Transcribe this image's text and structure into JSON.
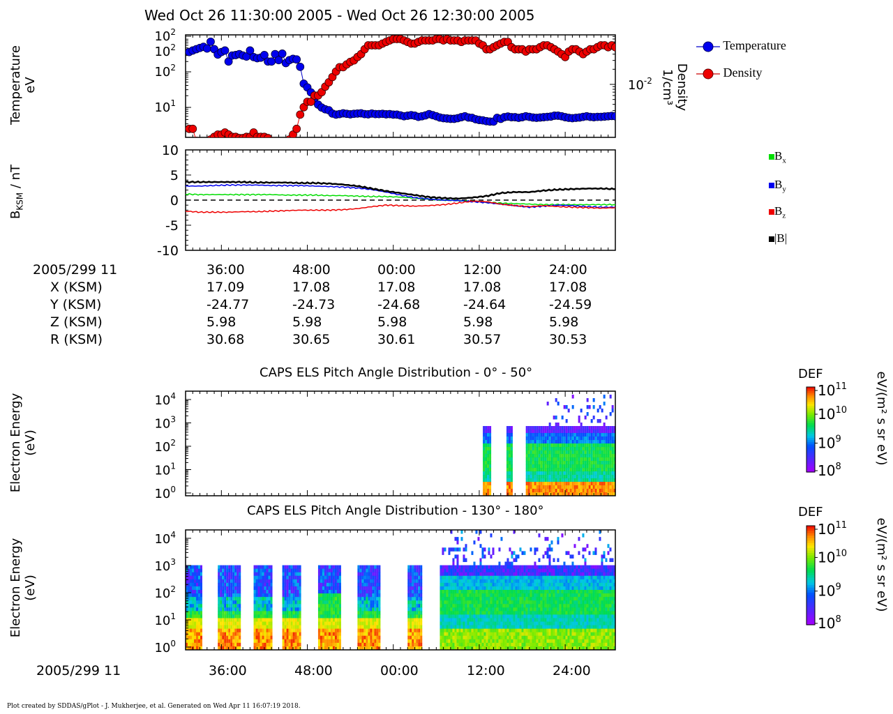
{
  "page_title": "Wed Oct 26 11:30:00 2005 - Wed Oct 26 12:30:00 2005",
  "footer": "Plot created by SDDAS/gPlot - J. Mukherjee, et al.  Generated on Wed Apr 11 16:07:19 2018.",
  "colors": {
    "temperature": "#0000cc",
    "density": "#ee0000",
    "bx": "#00dd00",
    "by": "#0000ee",
    "bz": "#ee0000",
    "btot": "#000000"
  },
  "chart_data": [
    {
      "id": "moments",
      "type": "scatter",
      "ylabel_lines": [
        "Temperature",
        "eV"
      ],
      "right_label_lines": [
        "Density",
        "1/cm³"
      ],
      "right_tick": "10⁻²",
      "ytick_labels": [
        "10²",
        "10²",
        "10²",
        "10¹"
      ],
      "ylog": true,
      "legend": [
        "Temperature",
        "Density"
      ],
      "legend_position": "right",
      "x_minutes": [
        0.5,
        1.0,
        1.5,
        2.0,
        2.5,
        3.0,
        3.5,
        4.0,
        4.5,
        5.0,
        5.5,
        6.0,
        6.5,
        7.0,
        7.5,
        8.0,
        8.5,
        9.0,
        9.5,
        10.0,
        10.5,
        11.0,
        11.5,
        12.0,
        12.5,
        13.0,
        13.5,
        14.0,
        14.5,
        15.0,
        15.5,
        16.0,
        16.5,
        17.0,
        17.5,
        18.0,
        18.5,
        19.0,
        19.5,
        20.0,
        20.5,
        21.0,
        21.5,
        22.0,
        22.5,
        23.0,
        23.5,
        24.0,
        24.5,
        25.0,
        25.5,
        26.0,
        26.5,
        27.0,
        27.5,
        28.0,
        28.5,
        29.0,
        29.5,
        30.0,
        30.5,
        31.0,
        31.5,
        32.0,
        32.5,
        33.0,
        33.5,
        34.0,
        34.5,
        35.0,
        35.5,
        36.0,
        36.5,
        37.0,
        37.5,
        38.0,
        38.5,
        39.0,
        39.5,
        40.0,
        40.5,
        41.0,
        41.5,
        42.0,
        42.5,
        43.0,
        43.5,
        44.0,
        44.5,
        45.0,
        45.5,
        46.0,
        46.5,
        47.0,
        47.5,
        48.0,
        48.5,
        49.0,
        49.5,
        50.0,
        50.5,
        51.0,
        51.5,
        52.0,
        52.5,
        53.0,
        53.5,
        54.0,
        54.5,
        55.0,
        55.5,
        56.0,
        56.5,
        57.0,
        57.5,
        58.0,
        58.5,
        59.0,
        59.5,
        60.0
      ],
      "series": [
        {
          "name": "Temperature",
          "values": [
            380,
            420,
            460,
            500,
            540,
            480,
            760,
            460,
            320,
            380,
            420,
            200,
            300,
            310,
            330,
            300,
            280,
            420,
            270,
            250,
            260,
            310,
            200,
            200,
            330,
            220,
            340,
            180,
            220,
            240,
            230,
            140,
            45,
            35,
            25,
            17,
            11,
            9,
            8,
            7.5,
            6,
            5.6,
            5.8,
            6.1,
            5.9,
            5.7,
            5.9,
            6.0,
            6.1,
            5.8,
            5.7,
            6.0,
            5.8,
            5.8,
            5.9,
            5.7,
            5.8,
            5.6,
            5.6,
            5.3,
            5.0,
            5.2,
            5.4,
            5.2,
            4.8,
            5.0,
            5.3,
            5.8,
            5.4,
            5.0,
            4.6,
            4.4,
            4.3,
            4.2,
            4.2,
            4.4,
            4.7,
            5.0,
            4.6,
            4.5,
            4.1,
            3.9,
            3.8,
            3.6,
            3.5,
            3.5,
            4.5,
            4.2,
            4.7,
            4.9,
            4.7,
            4.7,
            4.5,
            4.7,
            5.0,
            4.8,
            4.6,
            4.5,
            4.6,
            4.7,
            4.8,
            4.9,
            5.2,
            5.2,
            5.0,
            4.7,
            4.5,
            4.4,
            4.5,
            4.6,
            4.8,
            5.0,
            4.8,
            4.7,
            4.8,
            4.8,
            4.9,
            5.0,
            5.1,
            5.0
          ]
        },
        {
          "name": "Density",
          "values": [
            0.0013,
            0.0013,
            0.00075,
            0.00055,
            0.00055,
            0.0007,
            0.0008,
            0.0009,
            0.001,
            0.001,
            0.0011,
            0.001,
            0.0009,
            0.0009,
            0.00085,
            0.00085,
            0.0009,
            0.0009,
            0.0011,
            0.0009,
            0.0009,
            0.0009,
            0.00085,
            0.00075,
            0.0006,
            0.0005,
            0.0006,
            0.0007,
            0.0008,
            0.001,
            0.0013,
            0.0025,
            0.0035,
            0.0045,
            0.0045,
            0.006,
            0.006,
            0.007,
            0.009,
            0.011,
            0.014,
            0.018,
            0.022,
            0.022,
            0.025,
            0.028,
            0.03,
            0.035,
            0.04,
            0.05,
            0.06,
            0.06,
            0.06,
            0.06,
            0.065,
            0.07,
            0.075,
            0.08,
            0.08,
            0.08,
            0.075,
            0.07,
            0.065,
            0.065,
            0.07,
            0.075,
            0.075,
            0.075,
            0.075,
            0.08,
            0.08,
            0.075,
            0.08,
            0.075,
            0.075,
            0.075,
            0.07,
            0.075,
            0.075,
            0.075,
            0.075,
            0.065,
            0.06,
            0.05,
            0.05,
            0.055,
            0.06,
            0.065,
            0.07,
            0.07,
            0.055,
            0.05,
            0.05,
            0.05,
            0.045,
            0.05,
            0.05,
            0.05,
            0.055,
            0.06,
            0.06,
            0.055,
            0.05,
            0.045,
            0.04,
            0.035,
            0.045,
            0.05,
            0.05,
            0.045,
            0.04,
            0.045,
            0.05,
            0.05,
            0.055,
            0.06,
            0.06,
            0.055,
            0.06,
            0.055
          ]
        }
      ]
    },
    {
      "id": "magnetometer",
      "type": "line",
      "ylabel": "BKSM / nT",
      "ylabel_main": "B",
      "ylabel_sub": "KSM",
      "ylabel_rest": " / nT",
      "ylim": [
        -10,
        10
      ],
      "yticks": [
        "10",
        "5",
        "0",
        "-5",
        "-10"
      ],
      "legend_position": "right",
      "x_minutes": [
        0,
        2,
        4,
        6,
        8,
        10,
        12,
        14,
        16,
        18,
        20,
        22,
        24,
        26,
        28,
        30,
        32,
        34,
        36,
        38,
        40,
        42,
        44,
        46,
        48,
        50,
        52,
        54,
        56,
        58,
        60
      ],
      "series": [
        {
          "name": "Bx",
          "values": [
            1.2,
            1.1,
            1.1,
            1.1,
            1.1,
            1.1,
            1.1,
            1.0,
            1.0,
            1.0,
            0.9,
            0.9,
            0.8,
            0.7,
            0.7,
            0.6,
            0.4,
            0.2,
            0.0,
            -0.1,
            -0.2,
            -0.4,
            -0.6,
            -0.7,
            -0.8,
            -0.9,
            -0.9,
            -0.9,
            -0.9,
            -0.9,
            -0.9
          ]
        },
        {
          "name": "By",
          "values": [
            2.8,
            2.8,
            2.9,
            3.0,
            3.0,
            3.0,
            2.9,
            2.9,
            2.9,
            2.8,
            2.7,
            2.6,
            2.4,
            2.1,
            1.6,
            1.0,
            0.5,
            0.2,
            0.0,
            -0.1,
            -0.3,
            -0.5,
            -0.8,
            -1.1,
            -1.4,
            -1.2,
            -1.0,
            -1.1,
            -1.3,
            -1.4,
            -1.4
          ]
        },
        {
          "name": "Bz",
          "values": [
            -2.2,
            -2.4,
            -2.4,
            -2.4,
            -2.3,
            -2.3,
            -2.2,
            -2.1,
            -2.0,
            -2.0,
            -2.0,
            -1.9,
            -1.7,
            -1.3,
            -1.0,
            -1.1,
            -1.2,
            -1.1,
            -0.9,
            -0.6,
            -0.2,
            -0.3,
            -0.8,
            -1.1,
            -1.3,
            -1.1,
            -1.3,
            -1.4,
            -1.5,
            -1.6,
            -1.5
          ]
        },
        {
          "name": "|B|",
          "values": [
            3.6,
            3.6,
            3.6,
            3.6,
            3.6,
            3.5,
            3.5,
            3.5,
            3.4,
            3.4,
            3.3,
            3.1,
            2.8,
            2.3,
            1.8,
            1.4,
            1.0,
            0.6,
            0.4,
            0.3,
            0.5,
            0.8,
            1.4,
            1.6,
            1.6,
            1.9,
            2.1,
            2.2,
            2.3,
            2.3,
            2.2
          ]
        }
      ],
      "legend": [
        {
          "base": "B",
          "sub": "x"
        },
        {
          "base": "B",
          "sub": "y"
        },
        {
          "base": "B",
          "sub": "z"
        },
        {
          "base": "|B|",
          "sub": ""
        }
      ]
    },
    {
      "id": "els_pitch_0_50",
      "type": "heatmap",
      "title": "CAPS ELS Pitch Angle Distribution - 0° - 50°",
      "ylabel_lines": [
        "Electron Energy",
        "(eV)"
      ],
      "yticks": [
        "10⁴",
        "10³",
        "10²",
        "10¹",
        "10⁰"
      ],
      "ylog": true,
      "data_intervals_minutes": [
        [
          41.5,
          42.5
        ],
        [
          44.8,
          45.6
        ],
        [
          47.5,
          60
        ]
      ],
      "colorbar": {
        "label": "DEF",
        "units": "eV/(m² s sr eV)",
        "ticks": [
          "10¹¹",
          "10¹⁰",
          "10⁹",
          "10⁸"
        ]
      }
    },
    {
      "id": "els_pitch_130_180",
      "type": "heatmap",
      "title": "CAPS ELS Pitch Angle Distribution - 130° - 180°",
      "ylabel_lines": [
        "Electron Energy",
        "(eV)"
      ],
      "yticks": [
        "10⁴",
        "10³",
        "10²",
        "10¹",
        "10⁰"
      ],
      "ylog": true,
      "data_intervals_minutes": [
        [
          30,
          32.2
        ],
        [
          34.5,
          37.5
        ],
        [
          39.5,
          42
        ],
        [
          43.5,
          46
        ],
        [
          48.5,
          51.5
        ],
        [
          54,
          57
        ],
        [
          61,
          63
        ],
        [
          65.5,
          90
        ]
      ],
      "colorbar": {
        "label": "DEF",
        "units": "eV/(m² s sr eV)",
        "ticks": [
          "10¹¹",
          "10¹⁰",
          "10⁹",
          "10⁸"
        ]
      }
    }
  ],
  "ephemeris": {
    "header": "2005/299 11",
    "ticks": [
      "36:00",
      "48:00",
      "00:00",
      "12:00",
      "24:00"
    ],
    "rows": [
      {
        "label": "X (KSM)",
        "values": [
          "17.09",
          "17.08",
          "17.08",
          "17.08",
          "17.08"
        ]
      },
      {
        "label": "Y (KSM)",
        "values": [
          "-24.77",
          "-24.73",
          "-24.68",
          "-24.64",
          "-24.59"
        ]
      },
      {
        "label": "Z (KSM)",
        "values": [
          "5.98",
          "5.98",
          "5.98",
          "5.98",
          "5.98"
        ]
      },
      {
        "label": "R (KSM)",
        "values": [
          "30.68",
          "30.65",
          "30.61",
          "30.57",
          "30.53"
        ]
      }
    ]
  },
  "bottom_axis": {
    "header": "2005/299 11",
    "ticks": [
      "36:00",
      "48:00",
      "00:00",
      "12:00",
      "24:00"
    ]
  }
}
